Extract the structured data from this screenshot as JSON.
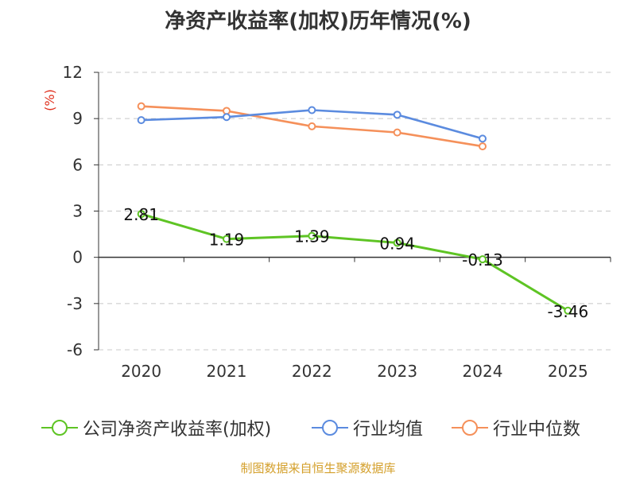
{
  "title": "净资产收益率(加权)历年情况(%)",
  "source": "制图数据来自恒生聚源数据库",
  "chart_data": {
    "type": "line",
    "unit_label": "(%)",
    "unit_color": "#e0301e",
    "categories": [
      "2020",
      "2021",
      "2022",
      "2023",
      "2024",
      "2025"
    ],
    "ylim": [
      -6,
      12
    ],
    "yticks": [
      "12",
      "9",
      "6",
      "3",
      "0",
      "-3",
      "-6"
    ],
    "ytick_values": [
      12,
      9,
      6,
      3,
      0,
      -3,
      -6
    ],
    "grid": true,
    "series": [
      {
        "name": "公司净资产收益率(加权)",
        "color": "#5ec424",
        "values": [
          2.81,
          1.19,
          1.39,
          0.94,
          -0.13,
          -3.46
        ],
        "data_labels": [
          "2.81",
          "1.19",
          "1.39",
          "0.94",
          "-0.13",
          "-3.46"
        ]
      },
      {
        "name": "行业均值",
        "color": "#5b8bdf",
        "values": [
          8.9,
          9.1,
          9.55,
          9.25,
          7.7,
          null
        ]
      },
      {
        "name": "行业中位数",
        "color": "#f5905a",
        "values": [
          9.8,
          9.5,
          8.5,
          8.1,
          7.2,
          null
        ]
      }
    ],
    "legend_position": "bottom"
  }
}
